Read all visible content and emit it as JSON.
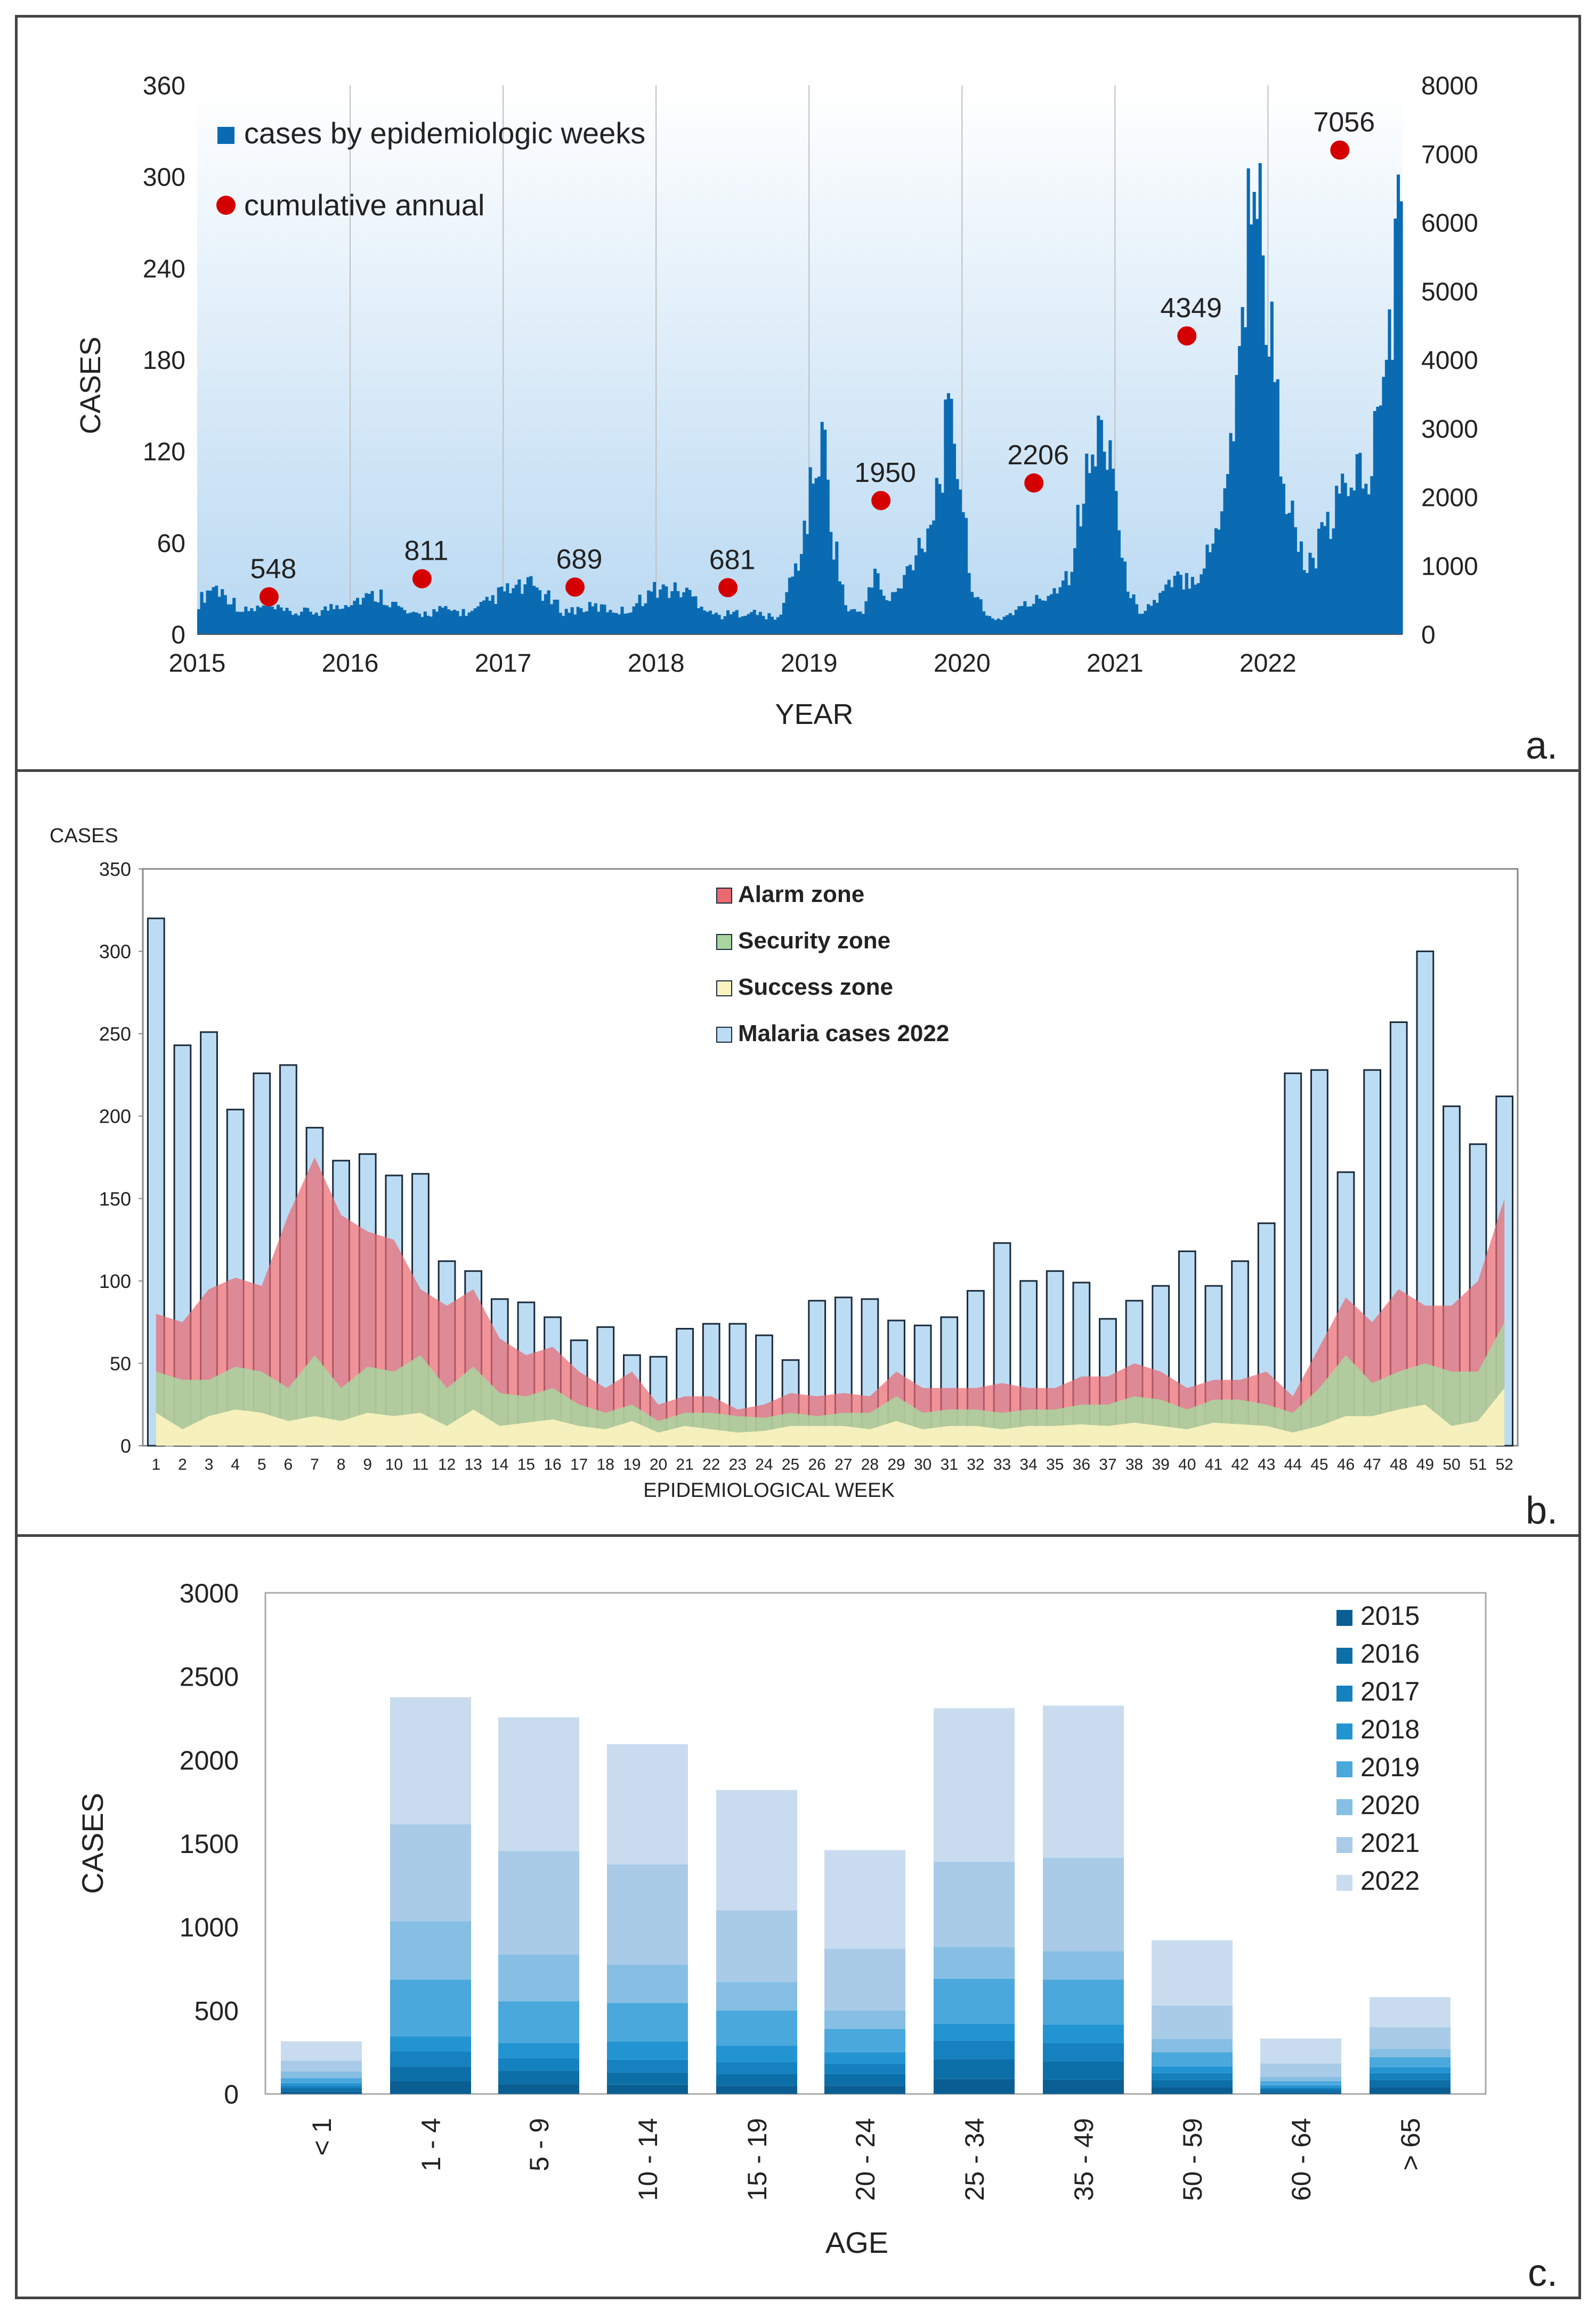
{
  "colors": {
    "weekly_bar": "#0a6bb3",
    "cumulative_dot": "#d40000",
    "bg_top": "#ffffff",
    "bg_bottom": "#b9d9f2",
    "alarm": "#ea6a72",
    "security": "#a9d6a0",
    "success": "#fbf3bf",
    "malaria_2022": "#bcdcf4",
    "malaria_border": "#1a2a3a"
  },
  "chart_data": [
    {
      "id": "a",
      "type": "bar",
      "panel_label": "a.",
      "xlabel": "YEAR",
      "ylabel": "CASES",
      "y_ticks": [
        "0",
        "60",
        "120",
        "180",
        "240",
        "300",
        "360"
      ],
      "ylim": [
        0,
        360
      ],
      "y2_ticks": [
        "0",
        "1000",
        "2000",
        "3000",
        "4000",
        "5000",
        "6000",
        "7000",
        "8000"
      ],
      "y2lim": [
        0,
        8000
      ],
      "x_ticks": [
        "2015",
        "2016",
        "2017",
        "2018",
        "2019",
        "2020",
        "2021",
        "2022"
      ],
      "legend": [
        "cases by epidemiologic weeks",
        "cumulative annual"
      ],
      "weekly_envelope": {
        "note": "approximate weekly cases, x in years (2015.0-2022.88)",
        "x": [
          2015.0,
          2015.1,
          2015.2,
          2015.3,
          2015.45,
          2015.6,
          2015.8,
          2016.0,
          2016.2,
          2016.4,
          2016.6,
          2016.8,
          2017.0,
          2017.2,
          2017.4,
          2017.6,
          2017.8,
          2018.0,
          2018.2,
          2018.4,
          2018.6,
          2018.8,
          2018.95,
          2019.05,
          2019.1,
          2019.15,
          2019.25,
          2019.35,
          2019.45,
          2019.5,
          2019.6,
          2019.7,
          2019.8,
          2019.9,
          2019.95,
          2020.0,
          2020.05,
          2020.15,
          2020.25,
          2020.4,
          2020.55,
          2020.7,
          2020.8,
          2020.9,
          2020.95,
          2021.0,
          2021.05,
          2021.15,
          2021.25,
          2021.4,
          2021.55,
          2021.65,
          2021.75,
          2021.82,
          2021.9,
          2022.0,
          2022.08,
          2022.15,
          2022.25,
          2022.35,
          2022.45,
          2022.55,
          2022.65,
          2022.75,
          2022.82,
          2022.88
        ],
        "values": [
          20,
          32,
          25,
          15,
          18,
          14,
          15,
          22,
          26,
          12,
          16,
          14,
          28,
          32,
          15,
          18,
          15,
          30,
          28,
          12,
          15,
          10,
          55,
          115,
          125,
          70,
          15,
          15,
          42,
          20,
          30,
          55,
          75,
          130,
          135,
          95,
          40,
          12,
          10,
          18,
          25,
          40,
          95,
          130,
          135,
          110,
          45,
          15,
          20,
          35,
          40,
          60,
          120,
          180,
          320,
          220,
          130,
          80,
          40,
          60,
          80,
          110,
          100,
          150,
          230,
          280
        ]
      },
      "annual_cumulative": [
        {
          "year": 2015,
          "label": "548",
          "value": 548
        },
        {
          "year": 2016,
          "label": "811",
          "value": 811
        },
        {
          "year": 2017,
          "label": "689",
          "value": 689
        },
        {
          "year": 2018,
          "label": "681",
          "value": 681
        },
        {
          "year": 2019,
          "label": "1950",
          "value": 1950
        },
        {
          "year": 2020,
          "label": "2206",
          "value": 2206
        },
        {
          "year": 2021,
          "label": "4349",
          "value": 4349
        },
        {
          "year": 2022,
          "label": "7056",
          "value": 7056
        }
      ]
    },
    {
      "id": "b",
      "type": "bar",
      "panel_label": "b.",
      "xlabel": "EPIDEMIOLOGICAL WEEK",
      "ylabel": "CASES",
      "y_ticks": [
        "0",
        "50",
        "100",
        "150",
        "200",
        "250",
        "300",
        "350"
      ],
      "ylim": [
        0,
        350
      ],
      "legend": [
        "Alarm zone",
        "Security zone",
        "Success zone",
        "Malaria cases 2022"
      ],
      "categories": [
        "1",
        "2",
        "3",
        "4",
        "5",
        "6",
        "7",
        "8",
        "9",
        "10",
        "11",
        "12",
        "13",
        "14",
        "15",
        "16",
        "17",
        "18",
        "19",
        "20",
        "21",
        "22",
        "23",
        "24",
        "25",
        "26",
        "27",
        "28",
        "29",
        "30",
        "31",
        "32",
        "33",
        "34",
        "35",
        "36",
        "37",
        "38",
        "39",
        "40",
        "41",
        "42",
        "43",
        "44",
        "45",
        "46",
        "47",
        "48",
        "49",
        "50",
        "51",
        "52"
      ],
      "malaria_cases_2022": [
        320,
        243,
        251,
        204,
        226,
        231,
        193,
        173,
        177,
        164,
        165,
        112,
        106,
        89,
        87,
        78,
        64,
        72,
        55,
        54,
        71,
        74,
        74,
        67,
        52,
        88,
        90,
        89,
        76,
        73,
        78,
        94,
        123,
        100,
        106,
        99,
        77,
        88,
        97,
        118,
        97,
        112,
        135,
        226,
        228,
        166,
        228,
        257,
        300,
        206,
        183,
        212
      ],
      "alarm_zone": [
        80,
        75,
        95,
        102,
        97,
        140,
        175,
        140,
        130,
        125,
        95,
        85,
        95,
        65,
        55,
        60,
        45,
        35,
        45,
        25,
        30,
        30,
        22,
        25,
        32,
        30,
        32,
        30,
        45,
        35,
        35,
        35,
        38,
        35,
        35,
        42,
        42,
        50,
        45,
        35,
        40,
        40,
        45,
        30,
        60,
        90,
        75,
        95,
        85,
        85,
        100,
        150
      ],
      "security_zone": [
        45,
        40,
        40,
        48,
        45,
        35,
        55,
        35,
        48,
        45,
        55,
        35,
        48,
        32,
        30,
        35,
        25,
        20,
        25,
        15,
        20,
        20,
        18,
        17,
        20,
        18,
        20,
        20,
        30,
        20,
        22,
        22,
        20,
        22,
        22,
        25,
        25,
        30,
        28,
        22,
        28,
        28,
        25,
        20,
        35,
        55,
        38,
        45,
        50,
        45,
        45,
        75
      ],
      "success_zone": [
        20,
        10,
        18,
        22,
        20,
        15,
        18,
        15,
        20,
        18,
        20,
        12,
        22,
        12,
        14,
        16,
        12,
        10,
        15,
        8,
        12,
        10,
        8,
        9,
        12,
        12,
        12,
        10,
        15,
        10,
        12,
        12,
        10,
        12,
        12,
        13,
        12,
        14,
        12,
        10,
        14,
        13,
        12,
        8,
        12,
        18,
        18,
        22,
        25,
        12,
        15,
        35
      ]
    },
    {
      "id": "c",
      "type": "bar",
      "panel_label": "c.",
      "xlabel": "AGE",
      "ylabel": "CASES",
      "y_ticks": [
        "0",
        "500",
        "1000",
        "1500",
        "2000",
        "2500",
        "3000"
      ],
      "ylim": [
        0,
        3000
      ],
      "categories": [
        "< 1",
        "1 - 4",
        "5 - 9",
        "10 - 14",
        "15 - 19",
        "20 - 24",
        "25 - 34",
        "35 - 49",
        "50 - 59",
        "60 - 64",
        "> 65"
      ],
      "series": [
        {
          "name": "2015",
          "color": "#0b5e92",
          "values": [
            15,
            75,
            60,
            55,
            50,
            50,
            90,
            85,
            40,
            12,
            40
          ]
        },
        {
          "name": "2016",
          "color": "#0d6fa8",
          "values": [
            20,
            90,
            80,
            75,
            70,
            70,
            120,
            110,
            45,
            15,
            45
          ]
        },
        {
          "name": "2017",
          "color": "#1581bf",
          "values": [
            15,
            90,
            75,
            75,
            70,
            60,
            110,
            110,
            40,
            12,
            40
          ]
        },
        {
          "name": "2018",
          "color": "#2394d2",
          "values": [
            15,
            90,
            90,
            110,
            100,
            70,
            100,
            110,
            40,
            13,
            35
          ]
        },
        {
          "name": "2019",
          "color": "#4ba8dc",
          "values": [
            30,
            340,
            250,
            230,
            210,
            140,
            270,
            270,
            85,
            25,
            60
          ]
        },
        {
          "name": "2020",
          "color": "#86bfe3",
          "values": [
            40,
            350,
            280,
            230,
            170,
            110,
            190,
            170,
            80,
            25,
            50
          ]
        },
        {
          "name": "2021",
          "color": "#a9cbe8",
          "values": [
            65,
            580,
            620,
            600,
            430,
            370,
            510,
            560,
            200,
            80,
            130
          ]
        },
        {
          "name": "2022",
          "color": "#c9dcef",
          "values": [
            115,
            760,
            800,
            720,
            720,
            590,
            920,
            910,
            390,
            150,
            180
          ]
        }
      ]
    }
  ]
}
